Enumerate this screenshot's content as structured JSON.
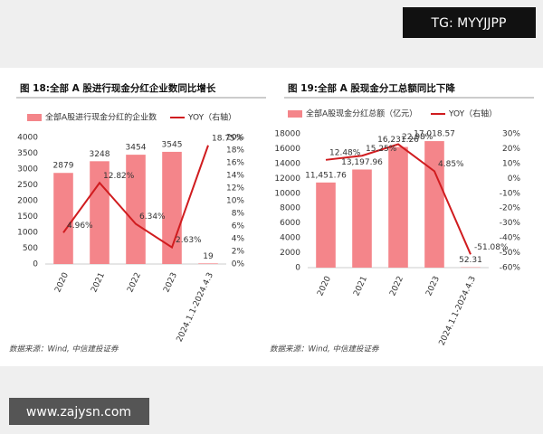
{
  "chart_data": [
    {
      "type": "combo",
      "title": "图 18:全部 A 股进行现金分红企业数同比增长",
      "categories": [
        "2020",
        "2021",
        "2022",
        "2023",
        "2024.1.1-2024.4.3"
      ],
      "series": [
        {
          "name": "全部A股进行现金分红的企业数",
          "type": "bar",
          "color": "#f4858a",
          "values": [
            2879,
            3248,
            3454,
            3545,
            19
          ]
        },
        {
          "name": "YOY（右轴）",
          "type": "line",
          "axis": "y2",
          "color": "#d01c1f",
          "values": [
            4.96,
            12.82,
            6.34,
            2.63,
            18.75
          ],
          "value_labels": [
            "4.96%",
            "12.82%",
            "6.34%",
            "2.63%",
            "18.75%"
          ]
        }
      ],
      "ylim": [
        0,
        4000
      ],
      "yticks": [
        0,
        500,
        1000,
        1500,
        2000,
        2500,
        3000,
        3500,
        4000
      ],
      "y2lim": [
        0,
        20
      ],
      "y2ticks": [
        {
          "value": 0,
          "label": "0%"
        },
        {
          "value": 2,
          "label": "2%"
        },
        {
          "value": 4,
          "label": "4%"
        },
        {
          "value": 6,
          "label": "6%"
        },
        {
          "value": 8,
          "label": "8%"
        },
        {
          "value": 10,
          "label": "10%"
        },
        {
          "value": 12,
          "label": "12%"
        },
        {
          "value": 14,
          "label": "14%"
        },
        {
          "value": 16,
          "label": "16%"
        },
        {
          "value": 18,
          "label": "18%"
        },
        {
          "value": 20,
          "label": "20%"
        }
      ],
      "source": "数据来源：Wind, 中信建投证券"
    },
    {
      "type": "combo",
      "title": "图 19:全部 A 股现金分工总额同比下降",
      "categories": [
        "2020",
        "2021",
        "2022",
        "2023",
        "2024.1.1-2024.4.3"
      ],
      "series": [
        {
          "name": "全部A股现金分红总额（亿元）",
          "type": "bar",
          "color": "#f4858a",
          "values": [
            11451.76,
            13197.96,
            16231.26,
            17018.57,
            52.31
          ],
          "value_labels": [
            "11,451.76",
            "13,197.96",
            "16,231.26",
            "17,018.57",
            "52.31"
          ]
        },
        {
          "name": "YOY（右轴）",
          "type": "line",
          "axis": "y2",
          "color": "#d01c1f",
          "values": [
            12.48,
            15.25,
            22.98,
            4.85,
            -51.08
          ],
          "value_labels": [
            "12.48%",
            "15.25%",
            "22.98%",
            "4.85%",
            "-51.08%"
          ]
        }
      ],
      "ylim": [
        0,
        18000
      ],
      "yticks": [
        0,
        2000,
        4000,
        6000,
        8000,
        10000,
        12000,
        14000,
        16000,
        18000
      ],
      "y2lim": [
        -60,
        30
      ],
      "y2ticks": [
        {
          "value": -60,
          "label": "-60%"
        },
        {
          "value": -50,
          "label": "-50%"
        },
        {
          "value": -40,
          "label": "-40%"
        },
        {
          "value": -30,
          "label": "-30%"
        },
        {
          "value": -20,
          "label": "-20%"
        },
        {
          "value": -10,
          "label": "-10%"
        },
        {
          "value": 0,
          "label": "0%"
        },
        {
          "value": 10,
          "label": "10%"
        },
        {
          "value": 20,
          "label": "20%"
        },
        {
          "value": 30,
          "label": "30%"
        }
      ],
      "source": "数据来源：Wind, 中信建投证券"
    }
  ],
  "watermarks": {
    "top": "TG: MYYJJPP",
    "bottom": "www.zajysn.com"
  }
}
